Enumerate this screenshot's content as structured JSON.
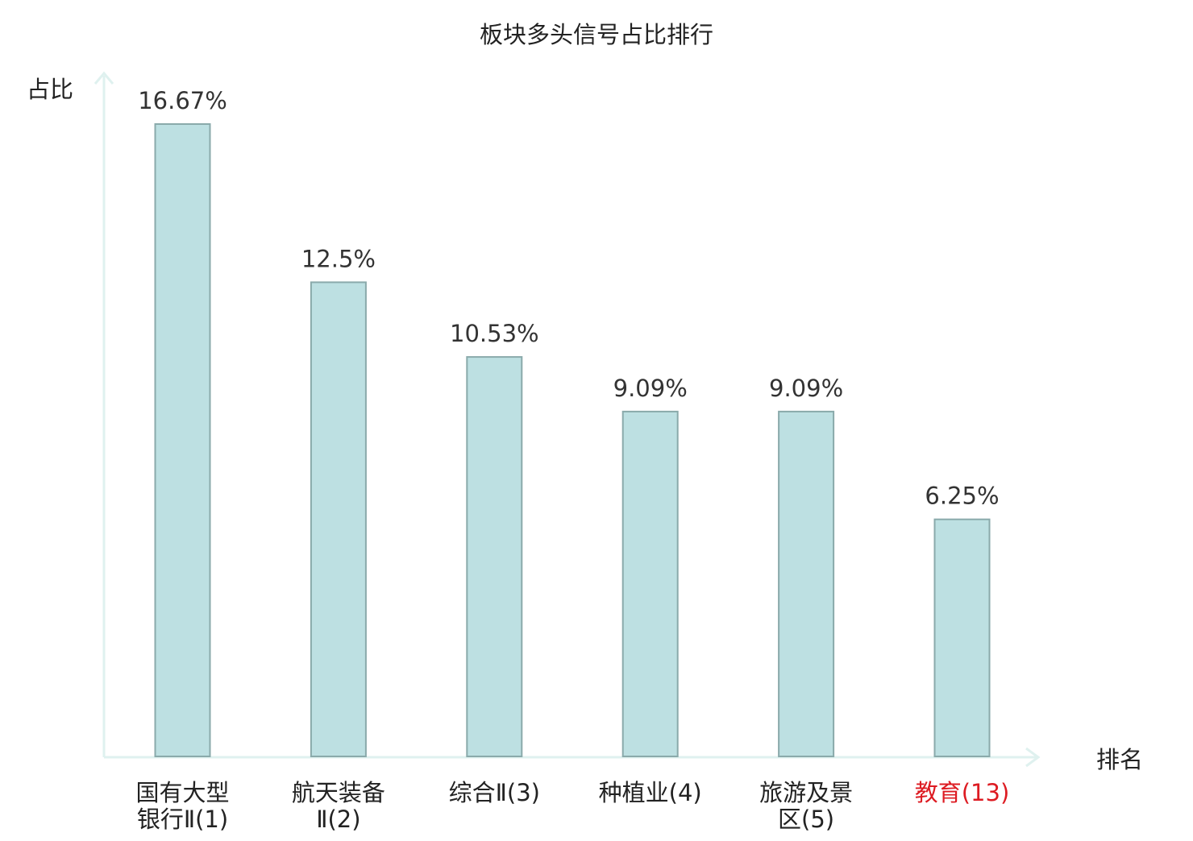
{
  "chart_data": {
    "type": "bar",
    "title": "板块多头信号占比排行",
    "ylabel": "占比",
    "xlabel": "排名",
    "ylim": [
      0,
      16.67
    ],
    "grid": false,
    "categories": [
      {
        "lines": [
          "国有大型",
          "银行Ⅱ(1)"
        ],
        "highlight": false
      },
      {
        "lines": [
          "航天装备",
          "Ⅱ(2)"
        ],
        "highlight": false
      },
      {
        "lines": [
          "综合Ⅱ(3)"
        ],
        "highlight": false
      },
      {
        "lines": [
          "种植业(4)"
        ],
        "highlight": false
      },
      {
        "lines": [
          "旅游及景",
          "区(5)"
        ],
        "highlight": false
      },
      {
        "lines": [
          "教育(13)"
        ],
        "highlight": true
      }
    ],
    "values": [
      16.67,
      12.5,
      10.53,
      9.09,
      9.09,
      6.25
    ],
    "value_labels": [
      "16.67%",
      "12.5%",
      "10.53%",
      "9.09%",
      "9.09%",
      "6.25%"
    ],
    "colors": {
      "bar_fill": "#bde0e2",
      "bar_stroke": "#8aaaab",
      "axis": "#dff1ef",
      "text": "#333333",
      "highlight": "#dd1b22"
    }
  }
}
